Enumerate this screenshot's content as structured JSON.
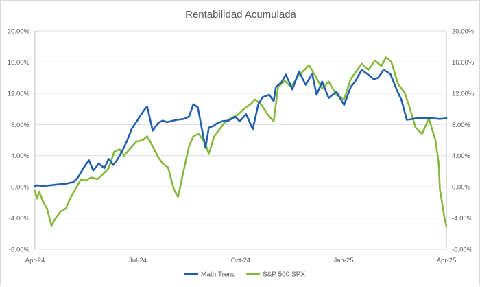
{
  "chart_data": {
    "type": "line",
    "title": "Rentabilidad Acumulada",
    "x_tick_labels": [
      "Apr-24",
      "Jul-24",
      "Oct-24",
      "Jan-25",
      "Apr-25"
    ],
    "x_range": [
      "2024-04-01",
      "2025-04-10"
    ],
    "ylim": [
      -8,
      20
    ],
    "y_ticks": [
      -8,
      -4,
      0,
      4,
      8,
      12,
      16,
      20
    ],
    "y_tick_labels": [
      "-8.00%",
      "-4.00%",
      "0.00%",
      "4.00%",
      "8.00%",
      "12.00%",
      "16.00%",
      "20.00%"
    ],
    "secondary_y_axis": true,
    "grid": "horizontal",
    "legend": "bottom",
    "series": [
      {
        "name": "Math Trend",
        "color": "#1f5fad",
        "x": [
          "2024-04-01",
          "2024-04-03",
          "2024-04-08",
          "2024-04-15",
          "2024-04-22",
          "2024-04-29",
          "2024-05-06",
          "2024-05-10",
          "2024-05-15",
          "2024-05-20",
          "2024-05-24",
          "2024-05-29",
          "2024-06-03",
          "2024-06-07",
          "2024-06-11",
          "2024-06-14",
          "2024-06-19",
          "2024-06-24",
          "2024-06-28",
          "2024-07-03",
          "2024-07-09",
          "2024-07-12",
          "2024-07-17",
          "2024-07-22",
          "2024-07-26",
          "2024-07-30",
          "2024-08-05",
          "2024-08-08",
          "2024-08-14",
          "2024-08-19",
          "2024-08-23",
          "2024-08-27",
          "2024-09-03",
          "2024-09-06",
          "2024-09-10",
          "2024-09-13",
          "2024-09-18",
          "2024-09-24",
          "2024-09-30",
          "2024-10-04",
          "2024-10-10",
          "2024-10-16",
          "2024-10-21",
          "2024-10-25",
          "2024-10-31",
          "2024-11-04",
          "2024-11-06",
          "2024-11-11",
          "2024-11-15",
          "2024-11-21",
          "2024-11-27",
          "2024-12-03",
          "2024-12-09",
          "2024-12-13",
          "2024-12-18",
          "2024-12-24",
          "2024-12-31",
          "2025-01-07",
          "2025-01-13",
          "2025-01-17",
          "2025-01-23",
          "2025-01-28",
          "2025-02-03",
          "2025-02-07",
          "2025-02-12",
          "2025-02-18",
          "2025-02-24",
          "2025-02-28",
          "2025-03-05",
          "2025-03-10",
          "2025-03-14",
          "2025-03-21",
          "2025-03-28",
          "2025-04-04",
          "2025-04-10"
        ],
        "y": [
          0.1,
          0.2,
          0.1,
          0.2,
          0.3,
          0.4,
          0.6,
          1.2,
          2.4,
          3.4,
          2.1,
          3.0,
          2.4,
          3.6,
          2.8,
          3.3,
          4.5,
          6.0,
          7.5,
          8.5,
          9.8,
          10.3,
          7.2,
          8.2,
          8.5,
          8.3,
          8.5,
          8.6,
          8.7,
          9.0,
          10.6,
          10.2,
          5.0,
          7.6,
          7.8,
          8.1,
          8.4,
          8.5,
          9.0,
          8.4,
          9.3,
          7.4,
          10.6,
          11.5,
          11.8,
          11.0,
          12.8,
          13.4,
          14.4,
          12.5,
          14.8,
          13.1,
          14.5,
          11.8,
          13.5,
          11.4,
          12.2,
          10.5,
          12.8,
          13.5,
          15.0,
          14.5,
          13.8,
          14.0,
          15.0,
          14.5,
          12.4,
          11.2,
          8.6,
          8.7,
          8.8,
          8.8,
          8.8,
          8.7,
          8.8
        ]
      },
      {
        "name": "S&P 500 SPX",
        "color": "#86b83c",
        "x": [
          "2024-04-01",
          "2024-04-03",
          "2024-04-05",
          "2024-04-08",
          "2024-04-12",
          "2024-04-16",
          "2024-04-19",
          "2024-04-24",
          "2024-04-29",
          "2024-05-03",
          "2024-05-08",
          "2024-05-13",
          "2024-05-17",
          "2024-05-22",
          "2024-05-28",
          "2024-06-03",
          "2024-06-07",
          "2024-06-12",
          "2024-06-17",
          "2024-06-21",
          "2024-06-27",
          "2024-07-02",
          "2024-07-08",
          "2024-07-12",
          "2024-07-17",
          "2024-07-22",
          "2024-07-26",
          "2024-07-31",
          "2024-08-05",
          "2024-08-09",
          "2024-08-14",
          "2024-08-19",
          "2024-08-23",
          "2024-08-28",
          "2024-09-03",
          "2024-09-06",
          "2024-09-11",
          "2024-09-16",
          "2024-09-20",
          "2024-09-26",
          "2024-10-02",
          "2024-10-08",
          "2024-10-14",
          "2024-10-18",
          "2024-10-24",
          "2024-10-30",
          "2024-11-04",
          "2024-11-08",
          "2024-11-14",
          "2024-11-20",
          "2024-11-26",
          "2024-12-02",
          "2024-12-06",
          "2024-12-12",
          "2024-12-18",
          "2024-12-24",
          "2024-12-31",
          "2025-01-07",
          "2025-01-13",
          "2025-01-17",
          "2025-01-23",
          "2025-01-29",
          "2025-02-04",
          "2025-02-10",
          "2025-02-14",
          "2025-02-19",
          "2025-02-25",
          "2025-03-03",
          "2025-03-07",
          "2025-03-13",
          "2025-03-19",
          "2025-03-25",
          "2025-03-31",
          "2025-04-03",
          "2025-04-04",
          "2025-04-08",
          "2025-04-10"
        ],
        "y": [
          -0.5,
          -1.5,
          -0.6,
          -1.8,
          -2.8,
          -5.0,
          -4.2,
          -3.2,
          -2.8,
          -1.5,
          -0.2,
          1.0,
          0.8,
          1.2,
          1.0,
          1.8,
          2.4,
          4.5,
          4.8,
          4.0,
          5.0,
          5.8,
          6.0,
          6.5,
          5.2,
          3.8,
          3.0,
          2.5,
          -0.2,
          -1.3,
          2.0,
          5.2,
          6.5,
          6.8,
          5.5,
          4.2,
          6.5,
          7.4,
          8.2,
          8.8,
          9.2,
          10.0,
          10.6,
          11.2,
          10.5,
          9.2,
          8.4,
          12.8,
          13.6,
          12.8,
          14.2,
          15.0,
          15.6,
          14.2,
          12.6,
          13.5,
          11.8,
          11.2,
          13.8,
          14.6,
          15.8,
          15.0,
          16.2,
          15.5,
          16.6,
          16.0,
          13.2,
          12.1,
          10.4,
          7.6,
          6.8,
          8.8,
          6.0,
          3.0,
          -0.2,
          -3.8,
          -5.1
        ]
      }
    ]
  }
}
